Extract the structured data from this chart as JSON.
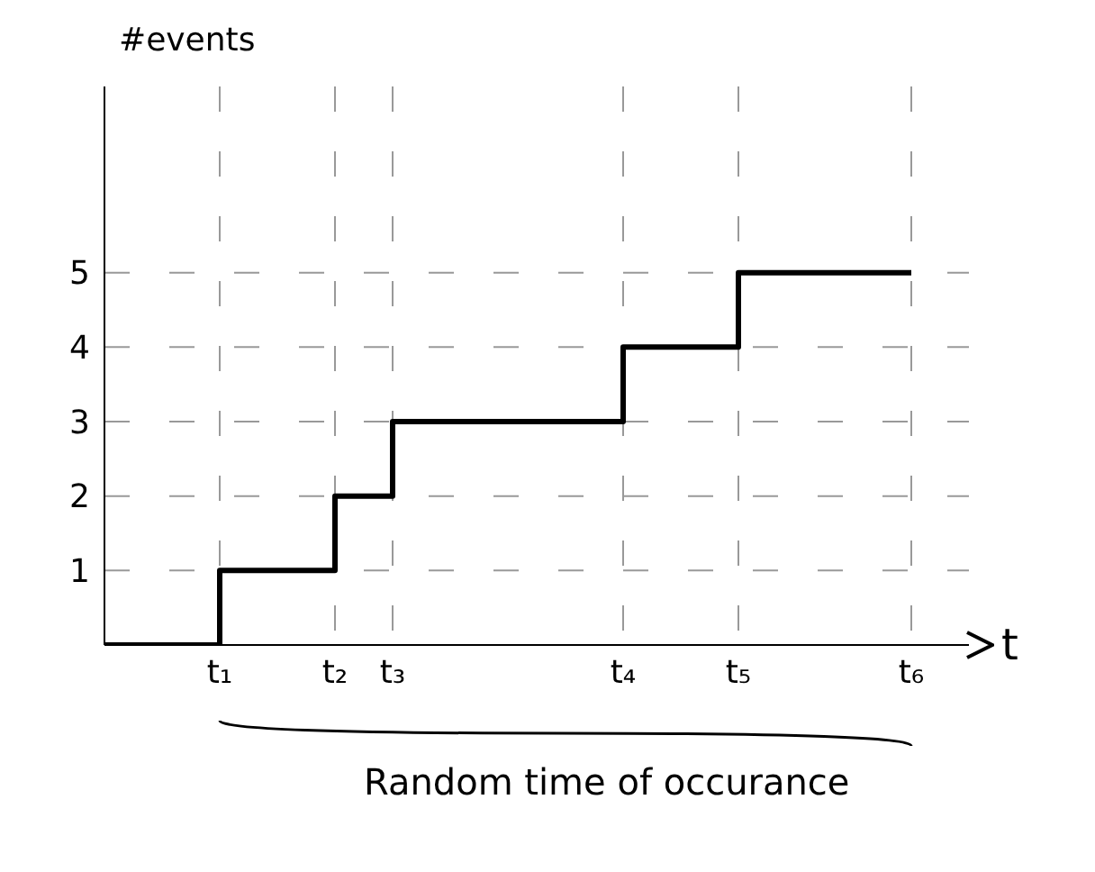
{
  "chart_data": {
    "type": "step",
    "ylabel": "#events",
    "xlabel": "t",
    "annotations": [
      "Random time of occurance"
    ],
    "categories": [
      null,
      null,
      "t₁",
      null,
      "t₂",
      "t₃",
      null,
      null,
      null,
      "t₄",
      null,
      "t₅",
      null,
      null,
      "t₆"
    ],
    "series": [
      {
        "color": "#000000",
        "values": [
          0,
          0,
          1,
          1,
          2,
          3,
          3,
          3,
          3,
          4,
          4,
          5,
          5,
          5,
          5
        ]
      }
    ],
    "ylim": [
      0,
      7.5
    ],
    "yticks": [
      1,
      2,
      3,
      4,
      5
    ],
    "grid": true,
    "marker": "none",
    "line_style": "solid"
  }
}
